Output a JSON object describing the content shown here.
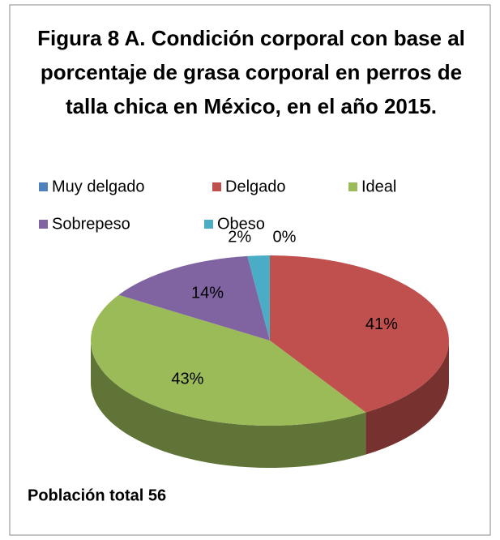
{
  "chart_data": {
    "type": "pie3d",
    "title": "Figura 8 A. Condición corporal con base al porcentaje de grasa corporal en perros de talla chica en México, en el año 2015.",
    "categories": [
      "Muy delgado",
      "Delgado",
      "Ideal",
      "Sobrepeso",
      "Obeso"
    ],
    "values": [
      0,
      41,
      43,
      14,
      2
    ],
    "value_labels": [
      "0%",
      "41%",
      "43%",
      "14%",
      "2%"
    ],
    "colors": [
      "#4f81bd",
      "#c0504d",
      "#9bbb59",
      "#8064a2",
      "#4bacc6"
    ],
    "legend": "top",
    "note": "Población total 56"
  }
}
